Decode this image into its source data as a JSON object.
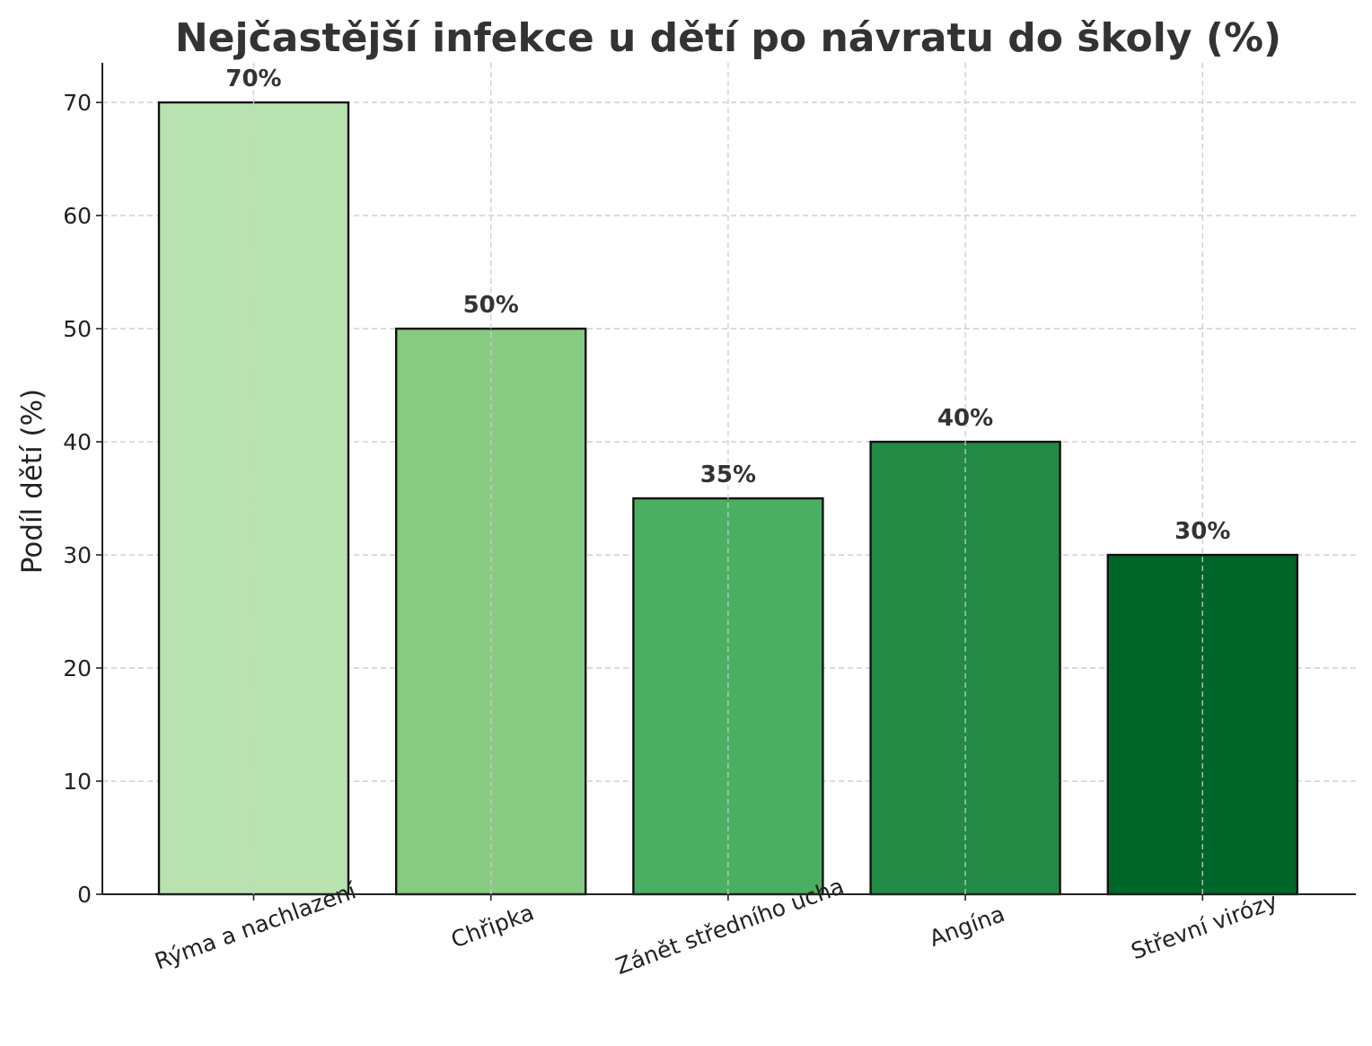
{
  "chart_data": {
    "type": "bar",
    "title": "Nejčastější infekce u dětí po návratu do školy (%)",
    "xlabel": "",
    "ylabel": "Podíl dětí (%)",
    "ylim": [
      0,
      73.5
    ],
    "yticks": [
      "0",
      "10",
      "20",
      "30",
      "40",
      "50",
      "60",
      "70"
    ],
    "categories": [
      "Rýma a nachlazení",
      "Chřipka",
      "Zánět středního ucha",
      "Angína",
      "Střevní virózy"
    ],
    "values": [
      70,
      50,
      35,
      40,
      30
    ],
    "data_labels": [
      "70%",
      "50%",
      "35%",
      "40%",
      "30%"
    ],
    "colors": [
      "#b8e3b1",
      "#87ca82",
      "#4baf62",
      "#238b45",
      "#00662a"
    ],
    "grid": true
  }
}
